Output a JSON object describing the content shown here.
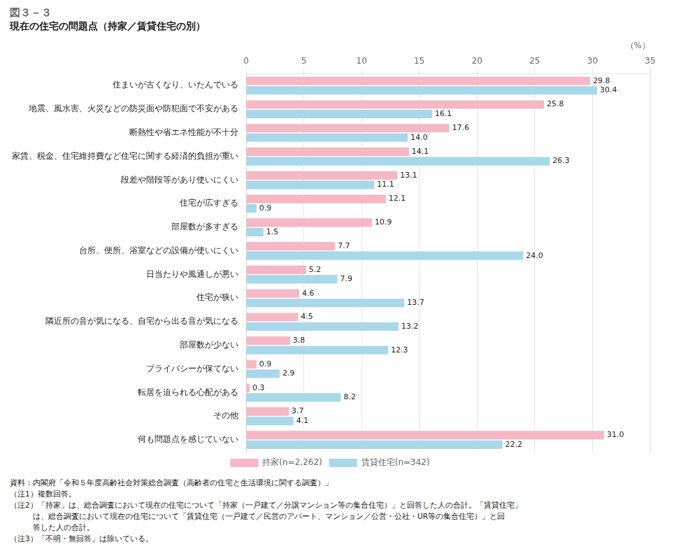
{
  "chart_data": {
    "type": "bar",
    "orientation": "horizontal",
    "title": "図３－３",
    "subtitle": "現在の住宅の問題点（持家／賃貸住宅の別）",
    "xlabel": "（%）",
    "categories": [
      "住まいが古くなり、いたんでいる",
      "地震、風水害、火災などの防災面や防犯面で不安がある",
      "断熱性や省エネ性能が不十分",
      "家賃、税金、住宅維持費など住宅に関する経済的負担が重い",
      "段差や階段等があり使いにくい",
      "住宅が広すぎる",
      "部屋数が多すぎる",
      "台所、便所、浴室などの設備が使いにくい",
      "日当たりや風通しが悪い",
      "住宅が狭い",
      "隣近所の音が気になる、自宅から出る音が気になる",
      "部屋数が少ない",
      "プライバシーが保てない",
      "転居を迫られる心配がある",
      "その他",
      "何も問題点を感じていない"
    ],
    "series": [
      {
        "name": "持家(n=2,262)",
        "color": "#f5b8c4",
        "values": [
          29.8,
          25.8,
          17.6,
          14.1,
          13.1,
          12.1,
          10.9,
          7.7,
          5.2,
          4.6,
          4.5,
          3.8,
          0.9,
          0.3,
          3.7,
          31.0
        ],
        "value_labels": [
          "29.8",
          "25.8",
          "17.6",
          "14.1",
          "13.1",
          "12.1",
          "10.9",
          "7.7",
          "5.2",
          "4.6",
          "4.5",
          "3.8",
          "0.9",
          "0.3",
          "3.7",
          "31.0"
        ]
      },
      {
        "name": "賃貸住宅(n=342)",
        "color": "#a8d8ea",
        "values": [
          30.4,
          16.1,
          14.0,
          26.3,
          11.1,
          0.9,
          1.5,
          24.0,
          7.9,
          13.7,
          13.2,
          12.3,
          2.9,
          8.2,
          4.1,
          22.2
        ],
        "value_labels": [
          "30.4",
          "16.1",
          "14.0",
          "26.3",
          "11.1",
          "0.9",
          "1.5",
          "24.0",
          "7.9",
          "13.7",
          "13.2",
          "12.3",
          "2.9",
          "8.2",
          "4.1",
          "22.2"
        ]
      }
    ],
    "xlim": [
      0,
      35
    ],
    "xticks": [
      0,
      5,
      10,
      15,
      20,
      25,
      30,
      35
    ],
    "grid": true,
    "legend": "bottom",
    "data_labels": true,
    "annotations": [
      "資料：内閣府「令和５年度高齢社会対策総合調査（高齢者の住宅と生活環境に関する調査）」",
      "（注1）複数回答。",
      "（注2）「持家」は、総合調査において現在の住宅について「持家（一戸建て／分譲マンション等の集合住宅）」と回答した人の合計。「賃貸住宅」",
      "　　　は、総合調査において現在の住宅について「賃貸住宅（一戸建て／民営のアパート、マンション／公営・公社・UR等の集合住宅）」と回",
      "　　　答した人の合計。",
      "（注3）「不明・無回答」は除いている。"
    ]
  }
}
